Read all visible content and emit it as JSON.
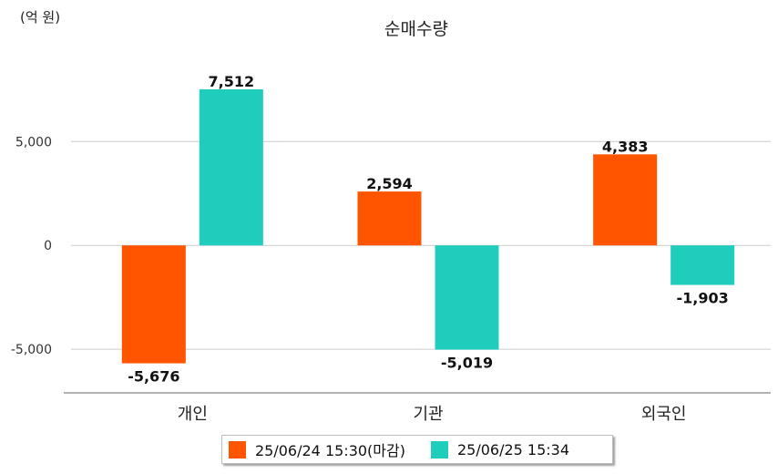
{
  "chart_data": {
    "type": "bar",
    "title": "순매수량",
    "unit_label": "(억 원)",
    "categories": [
      "개인",
      "기관",
      "외국인"
    ],
    "series": [
      {
        "name": "25/06/24 15:30(마감)",
        "color": "#ff5500",
        "values": [
          -5676,
          2594,
          4383
        ]
      },
      {
        "name": "25/06/25 15:34",
        "color": "#1ecdbb",
        "values": [
          7512,
          -5019,
          -1903
        ]
      }
    ],
    "value_labels": [
      [
        "-5,676",
        "2,594",
        "4,383"
      ],
      [
        "7,512",
        "-5,019",
        "-1,903"
      ]
    ],
    "yticks": [
      5000,
      0,
      -5000
    ],
    "ytick_labels": [
      "5,000",
      "0",
      "-5,000"
    ],
    "ylim": [
      -7100,
      9400
    ],
    "grid": true,
    "legend_position": "bottom"
  }
}
